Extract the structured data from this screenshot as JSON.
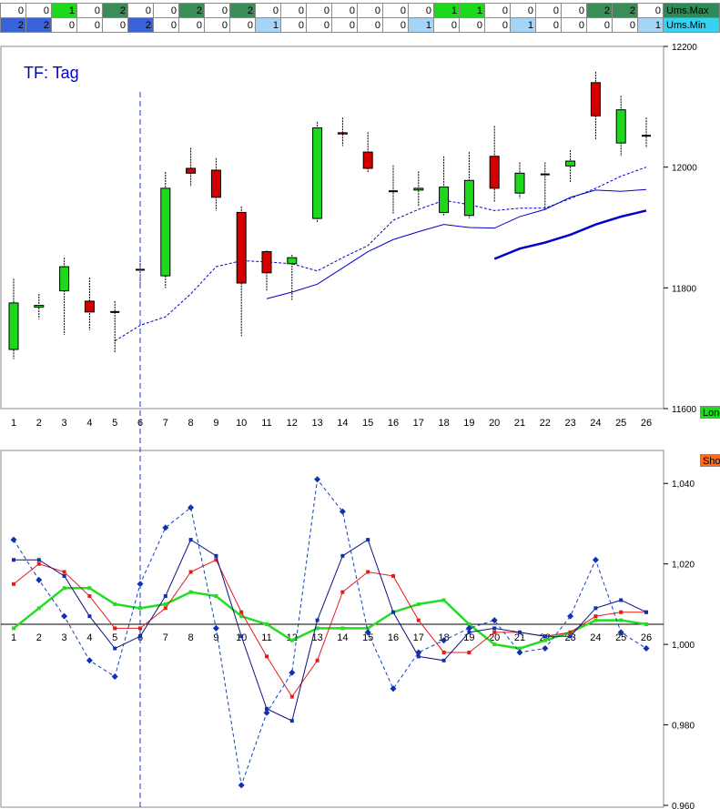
{
  "header_rows": [
    {
      "label": "Ums.Max",
      "label_color": "#2e8b57",
      "values": [
        0,
        0,
        1,
        0,
        2,
        0,
        0,
        2,
        0,
        2,
        0,
        0,
        0,
        0,
        0,
        0,
        0,
        1,
        1,
        0,
        0,
        0,
        0,
        2,
        2,
        0
      ],
      "colors": [
        "#ffffff",
        "#ffffff",
        "#1ed81e",
        "#ffffff",
        "#3c8c5a",
        "#ffffff",
        "#ffffff",
        "#3c8c5a",
        "#ffffff",
        "#3c8c5a",
        "#ffffff",
        "#ffffff",
        "#ffffff",
        "#ffffff",
        "#ffffff",
        "#ffffff",
        "#ffffff",
        "#1ed81e",
        "#1ed81e",
        "#ffffff",
        "#ffffff",
        "#ffffff",
        "#ffffff",
        "#3c8c5a",
        "#3c8c5a",
        "#ffffff"
      ]
    },
    {
      "label": "Ums.Min",
      "label_color": "#35d3f0",
      "values": [
        2,
        2,
        0,
        0,
        0,
        2,
        0,
        0,
        0,
        0,
        1,
        0,
        0,
        0,
        0,
        0,
        1,
        0,
        0,
        0,
        1,
        0,
        0,
        0,
        0,
        1
      ],
      "colors": [
        "#3a62d9",
        "#3a62d9",
        "#ffffff",
        "#ffffff",
        "#ffffff",
        "#3a62d9",
        "#ffffff",
        "#ffffff",
        "#ffffff",
        "#ffffff",
        "#a6d4f7",
        "#ffffff",
        "#ffffff",
        "#ffffff",
        "#ffffff",
        "#ffffff",
        "#a6d4f7",
        "#ffffff",
        "#ffffff",
        "#ffffff",
        "#a6d4f7",
        "#ffffff",
        "#ffffff",
        "#ffffff",
        "#ffffff",
        "#a6d4f7"
      ]
    }
  ],
  "side_tags": [
    {
      "text": "Long",
      "color": "#1ed81e"
    },
    {
      "text": "Short",
      "color": "#ff6a1a"
    }
  ],
  "colors": {
    "up": "#1ed81e",
    "down": "#d40000",
    "ma": "#0000cc",
    "green_line": "#22dd22",
    "red_line": "#e31b1b",
    "navy_line": "#101080",
    "blue_dash": "#1040c0",
    "cursor": "#1a3bcc"
  },
  "cursor_day": 6,
  "chart_data": [
    {
      "type": "candlestick",
      "title": "TF: Tag",
      "x": [
        1,
        2,
        3,
        4,
        5,
        6,
        7,
        8,
        9,
        10,
        11,
        12,
        13,
        14,
        15,
        16,
        17,
        18,
        19,
        20,
        21,
        22,
        23,
        24,
        25,
        26
      ],
      "ylim": [
        11600,
        12200
      ],
      "yticks": [
        11600,
        11800,
        12000,
        12200
      ],
      "open": [
        11698,
        11768,
        11795,
        11778,
        11760,
        11830,
        11820,
        11998,
        11995,
        11925,
        11860,
        11840,
        11915,
        12057,
        12025,
        11960,
        11962,
        11925,
        11920,
        12018,
        11957,
        11988,
        12002,
        12140,
        12040,
        12052
      ],
      "close": [
        11775,
        11771,
        11835,
        11760,
        11760,
        11830,
        11965,
        11990,
        11950,
        11808,
        11825,
        11850,
        12065,
        12055,
        11998,
        11960,
        11965,
        11967,
        11978,
        11965,
        11990,
        11988,
        12010,
        12085,
        12095,
        12052
      ],
      "high": [
        11815,
        11790,
        11850,
        11817,
        11778,
        11850,
        11992,
        12032,
        12015,
        11935,
        11862,
        11855,
        12075,
        12082,
        12058,
        12003,
        11993,
        12018,
        12025,
        12068,
        12008,
        12008,
        12028,
        12158,
        12118,
        12082
      ],
      "low": [
        11682,
        11748,
        11722,
        11730,
        11692,
        11808,
        11800,
        11968,
        11928,
        11720,
        11795,
        11780,
        11908,
        12035,
        11992,
        11922,
        11935,
        11920,
        11915,
        11942,
        11948,
        11930,
        11975,
        12045,
        12018,
        12032
      ],
      "ma_dashed": [
        null,
        null,
        null,
        null,
        11712,
        11738,
        11752,
        11790,
        11835,
        11845,
        11843,
        11840,
        11828,
        11850,
        11870,
        11912,
        11930,
        11945,
        11938,
        11928,
        11932,
        11932,
        11948,
        11965,
        11985,
        12000
      ],
      "ma_thin": [
        null,
        null,
        null,
        null,
        null,
        null,
        null,
        null,
        null,
        null,
        11782,
        11793,
        11806,
        11833,
        11860,
        11880,
        11893,
        11905,
        11900,
        11899,
        11918,
        11930,
        11950,
        11962,
        11960,
        11963
      ],
      "ma_thick": [
        null,
        null,
        null,
        null,
        null,
        null,
        null,
        null,
        null,
        null,
        null,
        null,
        null,
        null,
        null,
        null,
        null,
        null,
        null,
        11848,
        11865,
        11875,
        11888,
        11905,
        11918,
        11928
      ]
    },
    {
      "type": "line",
      "x": [
        1,
        2,
        3,
        4,
        5,
        6,
        7,
        8,
        9,
        10,
        11,
        12,
        13,
        14,
        15,
        16,
        17,
        18,
        19,
        20,
        21,
        22,
        23,
        24,
        25,
        26
      ],
      "ylim": [
        0.96,
        1.05
      ],
      "yticks": [
        "1,040",
        "1,020",
        "1,000",
        "0,980",
        "0,960"
      ],
      "ytick_values": [
        1.04,
        1.02,
        1.0,
        0.98,
        0.96
      ],
      "baseline": 1.005,
      "series": [
        {
          "values": [
            1.004,
            1.009,
            1.014,
            1.014,
            1.01,
            1.009,
            1.01,
            1.013,
            1.012,
            1.007,
            1.005,
            1.001,
            1.004,
            1.004,
            1.004,
            1.008,
            1.01,
            1.011,
            1.005,
            1.0,
            0.999,
            1.001,
            1.003,
            1.006,
            1.006,
            1.005
          ]
        },
        {
          "values": [
            1.015,
            1.02,
            1.018,
            1.012,
            1.004,
            1.004,
            1.009,
            1.018,
            1.021,
            1.008,
            0.997,
            0.987,
            0.996,
            1.013,
            1.018,
            1.017,
            1.006,
            0.998,
            0.998,
            1.003,
            1.003,
            1.002,
            1.003,
            1.007,
            1.008,
            1.008
          ]
        },
        {
          "values": [
            1.021,
            1.021,
            1.017,
            1.007,
            0.999,
            1.002,
            1.012,
            1.026,
            1.022,
            1.002,
            0.984,
            0.981,
            1.006,
            1.022,
            1.026,
            1.008,
            0.997,
            0.996,
            1.003,
            1.004,
            1.003,
            1.002,
            1.002,
            1.009,
            1.011,
            1.008
          ]
        },
        {
          "values": [
            1.026,
            1.016,
            1.007,
            0.996,
            0.992,
            1.015,
            1.029,
            1.034,
            1.004,
            0.965,
            0.983,
            0.993,
            1.041,
            1.033,
            1.003,
            0.989,
            0.998,
            1.001,
            1.004,
            1.006,
            0.998,
            0.999,
            1.007,
            1.021,
            1.003,
            0.999
          ]
        }
      ]
    }
  ]
}
